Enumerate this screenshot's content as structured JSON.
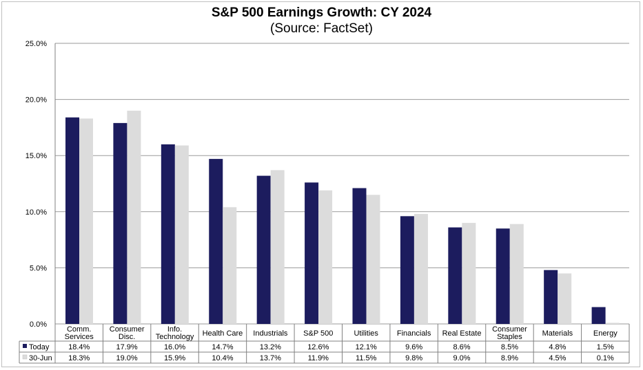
{
  "chart_data": {
    "type": "bar",
    "title": "S&P 500 Earnings Growth:  CY 2024",
    "subtitle": "(Source: FactSet)",
    "categories": [
      [
        "Comm.",
        "Services"
      ],
      [
        "Consumer",
        "Disc."
      ],
      [
        "Info.",
        "Technology"
      ],
      [
        "Health Care"
      ],
      [
        "Industrials"
      ],
      [
        "S&P 500"
      ],
      [
        "Utilities"
      ],
      [
        "Financials"
      ],
      [
        "Real Estate"
      ],
      [
        "Consumer",
        "Staples"
      ],
      [
        "Materials"
      ],
      [
        "Energy"
      ]
    ],
    "series": [
      {
        "name": "Today",
        "color": "#1c1c5e",
        "values": [
          18.4,
          17.9,
          16.0,
          14.7,
          13.2,
          12.6,
          12.1,
          9.6,
          8.6,
          8.5,
          4.8,
          1.5
        ],
        "labels": [
          "18.4%",
          "17.9%",
          "16.0%",
          "14.7%",
          "13.2%",
          "12.6%",
          "12.1%",
          "9.6%",
          "8.6%",
          "8.5%",
          "4.8%",
          "1.5%"
        ]
      },
      {
        "name": "30-Jun",
        "color": "#dcdcdc",
        "values": [
          18.3,
          19.0,
          15.9,
          10.4,
          13.7,
          11.9,
          11.5,
          9.8,
          9.0,
          8.9,
          4.5,
          0.1
        ],
        "labels": [
          "18.3%",
          "19.0%",
          "15.9%",
          "10.4%",
          "13.7%",
          "11.9%",
          "11.5%",
          "9.8%",
          "9.0%",
          "8.9%",
          "4.5%",
          "0.1%"
        ]
      }
    ],
    "ylim": [
      0,
      25
    ],
    "yticks": [
      0,
      5,
      10,
      15,
      20,
      25
    ],
    "ytick_labels": [
      "0.0%",
      "5.0%",
      "10.0%",
      "15.0%",
      "20.0%",
      "25.0%"
    ],
    "grid": true,
    "legend": "data-table"
  }
}
